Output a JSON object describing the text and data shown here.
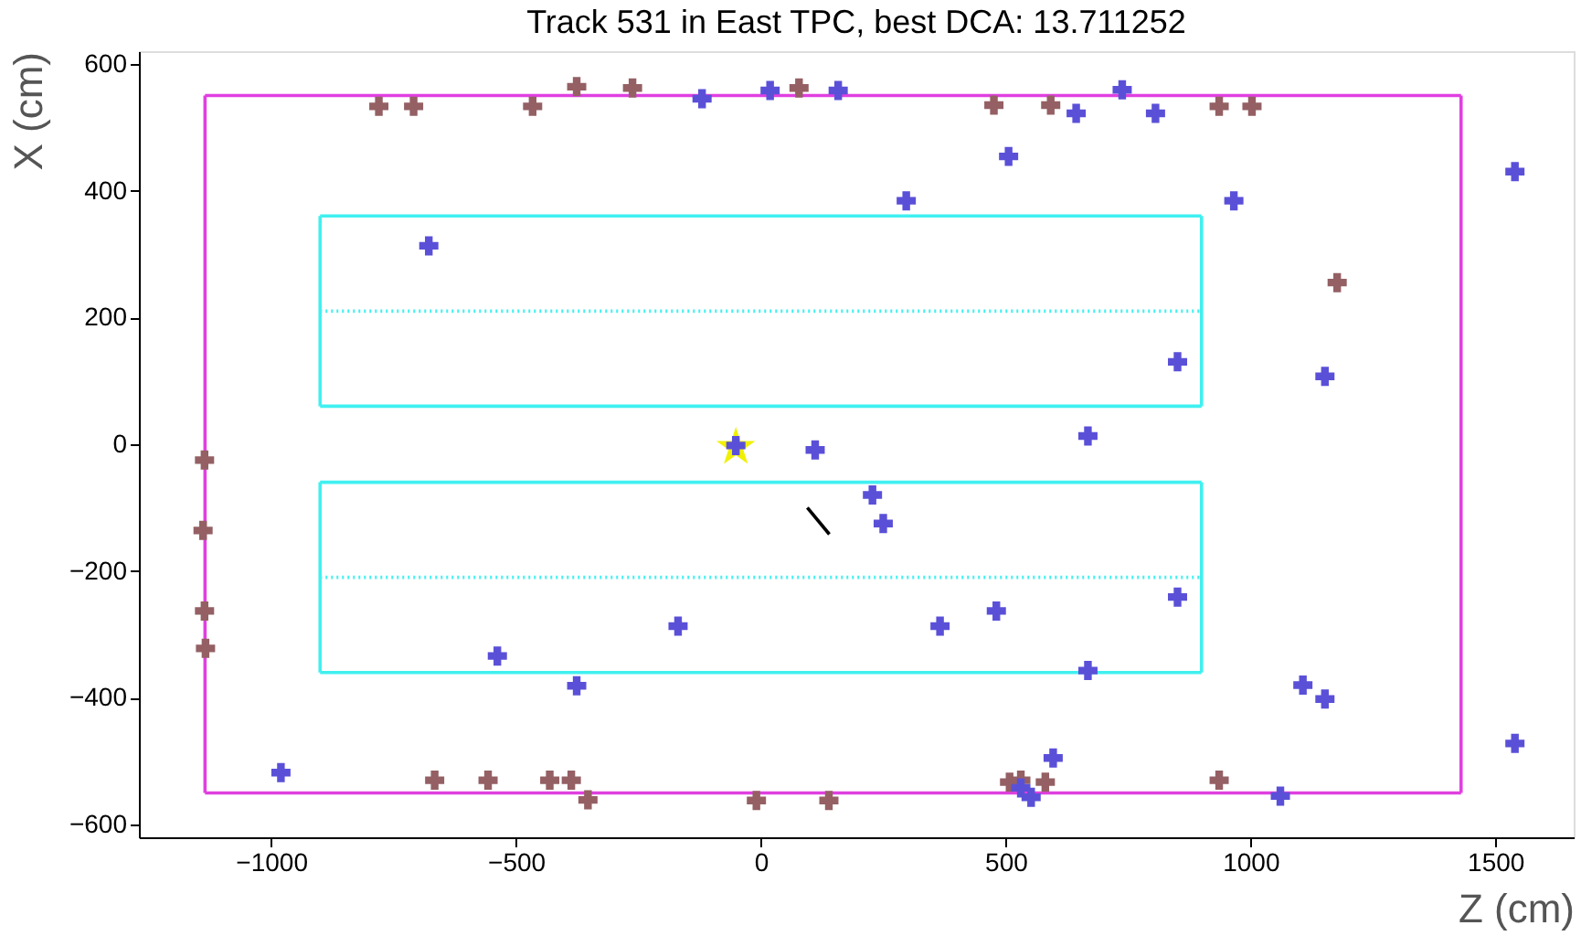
{
  "chart_data": {
    "type": "scatter",
    "title": "Track 531 in East TPC, best DCA: 13.711252",
    "xlabel": "Z (cm)",
    "ylabel": "X (cm)",
    "xlim": [
      -1270,
      1660
    ],
    "ylim": [
      -620,
      620
    ],
    "xticks": [
      -1000,
      -500,
      0,
      500,
      1000,
      1500
    ],
    "yticks": [
      -600,
      -400,
      -200,
      0,
      200,
      400,
      600
    ],
    "grid": false,
    "marker": "cross",
    "series": [
      {
        "type": "line",
        "marker": "none",
        "line_style": "solid",
        "color": "#e040e0",
        "x": [
          -1135,
          1430
        ],
        "values": [
          550,
          550
        ]
      },
      {
        "type": "line",
        "marker": "none",
        "line_style": "solid",
        "color": "#e040e0",
        "x": [
          -1135,
          1430
        ],
        "values": [
          -550,
          -550
        ]
      },
      {
        "type": "line",
        "marker": "none",
        "line_style": "solid",
        "color": "#e040e0",
        "x": [
          -1135,
          -1135
        ],
        "values": [
          550,
          -550
        ]
      },
      {
        "type": "line",
        "marker": "none",
        "line_style": "solid",
        "color": "#e040e0",
        "x": [
          1430,
          1430
        ],
        "values": [
          550,
          -550
        ]
      },
      {
        "type": "line",
        "marker": "none",
        "line_style": "solid",
        "color": "#40f0f0",
        "x": [
          -900,
          900
        ],
        "values": [
          360,
          360
        ]
      },
      {
        "type": "line",
        "marker": "none",
        "line_style": "solid",
        "color": "#40f0f0",
        "x": [
          -900,
          900
        ],
        "values": [
          60,
          60
        ]
      },
      {
        "type": "line",
        "marker": "none",
        "line_style": "solid",
        "color": "#40f0f0",
        "x": [
          -900,
          900
        ],
        "values": [
          -60,
          -60
        ]
      },
      {
        "type": "line",
        "marker": "none",
        "line_style": "solid",
        "color": "#40f0f0",
        "x": [
          -900,
          900
        ],
        "values": [
          -360,
          -360
        ]
      },
      {
        "type": "line",
        "marker": "none",
        "line_style": "solid",
        "color": "#40f0f0",
        "x": [
          -900,
          -900
        ],
        "values": [
          360,
          60
        ]
      },
      {
        "type": "line",
        "marker": "none",
        "line_style": "solid",
        "color": "#40f0f0",
        "x": [
          900,
          900
        ],
        "values": [
          360,
          60
        ]
      },
      {
        "type": "line",
        "marker": "none",
        "line_style": "solid",
        "color": "#40f0f0",
        "x": [
          -900,
          -900
        ],
        "values": [
          -60,
          -360
        ]
      },
      {
        "type": "line",
        "marker": "none",
        "line_style": "solid",
        "color": "#40f0f0",
        "x": [
          900,
          900
        ],
        "values": [
          -60,
          -360
        ]
      },
      {
        "type": "line",
        "marker": "none",
        "line_style": "dotted",
        "color": "#40f0f0",
        "x": [
          -900,
          900
        ],
        "values": [
          210,
          210
        ]
      },
      {
        "type": "line",
        "marker": "none",
        "line_style": "dotted",
        "color": "#40f0f0",
        "x": [
          -900,
          900
        ],
        "values": [
          -210,
          -210
        ]
      },
      {
        "marker": "star",
        "color": "#f0f000",
        "x": [
          -51
        ],
        "values": [
          -5
        ]
      },
      {
        "color": "#946064",
        "x": [
          -780,
          -709,
          -466,
          -376,
          -262,
          78,
          476,
          592,
          936,
          1003,
          1177,
          -1136,
          -1139,
          -1136,
          -1134,
          -666,
          -557,
          -431,
          -387,
          -353,
          -9,
          139,
          508,
          531,
          581,
          936
        ],
        "values": [
          533,
          533,
          533,
          564,
          562,
          562,
          535,
          535,
          533,
          533,
          255,
          -25,
          -136,
          -263,
          -322,
          -530,
          -530,
          -530,
          -530,
          -561,
          -562,
          -562,
          -533,
          -530,
          -533,
          -530
        ]
      },
      {
        "color": "#5a50d8",
        "x": [
          -120,
          19,
          158,
          297,
          506,
          644,
          738,
          806,
          966,
          1540,
          851,
          1152,
          -678,
          -51,
          111,
          668,
          228,
          250,
          -169,
          366,
          481,
          668,
          -538,
          -376,
          -980,
          597,
          531,
          552,
          851,
          1107,
          1152,
          1540,
          1061
        ],
        "values": [
          545,
          558,
          558,
          384,
          454,
          522,
          559,
          522,
          384,
          430,
          130,
          107,
          313,
          -2,
          -9,
          13,
          -80,
          -125,
          -287,
          -287,
          -263,
          -357,
          -334,
          -381,
          -518,
          -495,
          -542,
          -557,
          -241,
          -380,
          -402,
          -472,
          -555
        ]
      },
      {
        "type": "line",
        "marker": "none",
        "line_style": "solid",
        "color": "#000000",
        "x": [
          95,
          140
        ],
        "values": [
          -100,
          -142
        ]
      }
    ]
  }
}
